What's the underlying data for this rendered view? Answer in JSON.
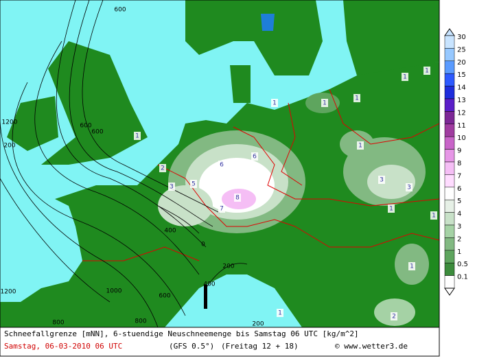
{
  "map": {
    "contour_labels": [
      "600",
      "1200",
      "200",
      "600",
      "600",
      "400",
      "0",
      "200",
      "400",
      "1000",
      "600",
      "1200",
      "800",
      "800",
      "200"
    ],
    "snow_labels": [
      "1",
      "2",
      "3",
      "5",
      "6",
      "6",
      "8",
      "7",
      "1",
      "1",
      "1",
      "1",
      "1",
      "1",
      "3",
      "3",
      "1",
      "1",
      "1",
      "1",
      "2"
    ]
  },
  "legend": {
    "levels": [
      {
        "value": 30,
        "color": "#c8e4ff"
      },
      {
        "value": 25,
        "color": "#96c8ff"
      },
      {
        "value": 20,
        "color": "#5a9bff"
      },
      {
        "value": 15,
        "color": "#2d5aff"
      },
      {
        "value": 14,
        "color": "#1e2ddc"
      },
      {
        "value": 13,
        "color": "#5a1ec8"
      },
      {
        "value": 12,
        "color": "#7d2896"
      },
      {
        "value": 11,
        "color": "#a03ca0"
      },
      {
        "value": 10,
        "color": "#c864c8"
      },
      {
        "value": 9,
        "color": "#e696e6"
      },
      {
        "value": 8,
        "color": "#f5bef5"
      },
      {
        "value": 7,
        "color": "#ffdcff"
      },
      {
        "value": 6,
        "color": "#ffffff"
      },
      {
        "value": 5,
        "color": "#e6f0e6"
      },
      {
        "value": 4,
        "color": "#c8e1c8"
      },
      {
        "value": 3,
        "color": "#a5d2a5"
      },
      {
        "value": 2,
        "color": "#82b982"
      },
      {
        "value": 1,
        "color": "#5ea55e"
      },
      {
        "value": 0.5,
        "color": "#3c8c3c"
      },
      {
        "value": 0.1,
        "color": "#ffffff"
      }
    ]
  },
  "footer": {
    "line1": "Schneefallgrenze [mNN], 6-stuendige Neuschneemenge bis Samstag 06 UTC [kg/m^2]",
    "date": "Samstag, 06-03-2010  06 UTC",
    "model": "(GFS 0.5°)",
    "run": "(Freitag 12 + 18)",
    "credit": "© www.wetter3.de"
  }
}
